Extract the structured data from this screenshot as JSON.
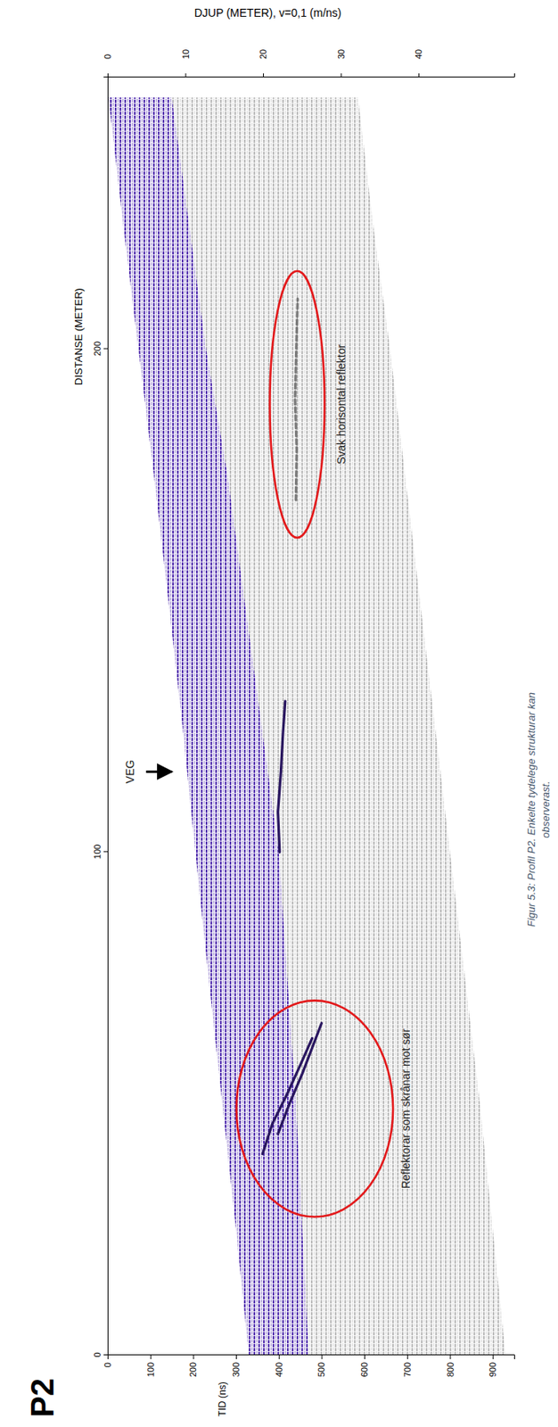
{
  "chart_data": {
    "type": "radargram",
    "title": "P2",
    "x_label": "DISTANSE (METER)",
    "y_label": "TID (ns)",
    "y2_label": "DJUP (METER), v=0,1 (m/ns)",
    "caption": "Figur 5.3: Profil P2. Enkelte tydelege strukturar kan observerast.",
    "xlim": [
      0,
      254
    ],
    "xticks": [
      0,
      100,
      200
    ],
    "ylim": [
      0,
      950
    ],
    "yticks": [
      0,
      100,
      200,
      300,
      400,
      500,
      600,
      700,
      800,
      900
    ],
    "y2lim": [
      0,
      52.3
    ],
    "y2ticks": [
      0,
      10,
      20,
      30,
      40
    ],
    "x": [
      0,
      25,
      50,
      75,
      100,
      125,
      150,
      175,
      200,
      225,
      250
    ],
    "bands": [
      {
        "color": "#bdbdbd",
        "from": [
          470,
          455,
          440,
          420,
          400,
          360,
          320,
          280,
          230,
          190,
          150
        ],
        "to": [
          930,
          900,
          870,
          835,
          800,
          765,
          730,
          695,
          660,
          620,
          585
        ]
      },
      {
        "color": "#5532b0",
        "from": [
          330,
          300,
          268,
          236,
          205,
          175,
          142,
          108,
          72,
          36,
          2
        ],
        "to": [
          470,
          455,
          440,
          420,
          400,
          360,
          320,
          280,
          230,
          190,
          150
        ]
      }
    ],
    "reflectors": [
      {
        "color": "#2a1760",
        "line_style": "solid",
        "x": [
          40,
          46,
          52,
          58,
          63
        ],
        "values": [
          362,
          385,
          420,
          452,
          478
        ]
      },
      {
        "color": "#2a1760",
        "line_style": "solid",
        "x": [
          44,
          50,
          56,
          62,
          66
        ],
        "values": [
          398,
          425,
          455,
          482,
          500
        ]
      },
      {
        "color": "#2a1760",
        "line_style": "solid",
        "x": [
          100,
          108,
          116,
          124,
          130
        ],
        "values": [
          402,
          398,
          405,
          410,
          415
        ]
      },
      {
        "color": "#7a7a7a",
        "line_style": "dashed",
        "x": [
          170,
          180,
          190,
          200,
          210
        ],
        "values": [
          440,
          442,
          438,
          441,
          444
        ]
      }
    ],
    "annotations": [
      {
        "text": "Svak horisontal reflektor",
        "x": 189,
        "y": 548,
        "color": "#e31a1c",
        "ellipse_x": 189,
        "ellipse_y": 443,
        "ellipse_rx": 26.5,
        "ellipse_ry": 64
      },
      {
        "text": "Reflektorar som skrånar mot sør",
        "x": 49,
        "y": 700,
        "color": "#e31a1c",
        "ellipse_x": 49,
        "ellipse_y": 484,
        "ellipse_rx": 21.5,
        "ellipse_ry": 183
      }
    ],
    "arrows": [
      {
        "text": "VEG",
        "x": 116,
        "y": 55,
        "from": 90,
        "to": 150
      }
    ]
  }
}
